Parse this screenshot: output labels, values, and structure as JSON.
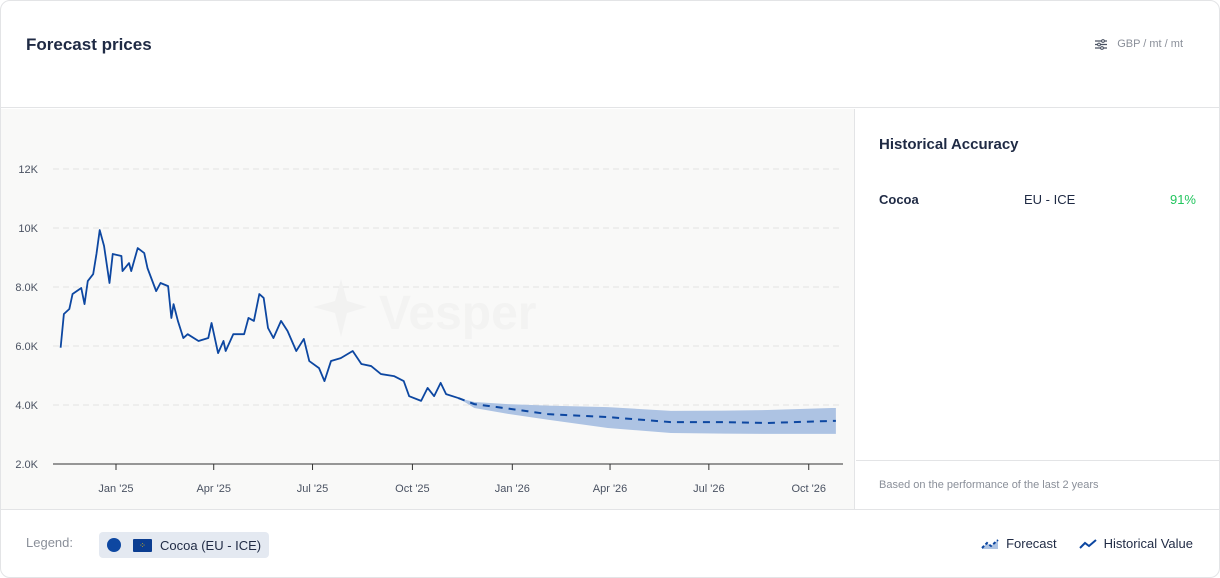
{
  "header": {
    "title": "Forecast prices",
    "units": "GBP / mt / mt",
    "units_icon": "sliders-icon"
  },
  "side": {
    "title": "Historical Accuracy",
    "rows": [
      {
        "name": "Cocoa",
        "market": "EU - ICE",
        "accuracy": "91%"
      }
    ],
    "note": "Based on the performance of the last 2 years"
  },
  "footer": {
    "legend_label": "Legend:",
    "chip": "Cocoa (EU - ICE)",
    "forecast": "Forecast",
    "historical": "Historical Value"
  },
  "watermark": "Vesper",
  "colors": {
    "line": "#0d47a1",
    "band": "#adc3e3",
    "accent_good": "#22c55e"
  },
  "chart_data": {
    "type": "line",
    "title": "Forecast prices",
    "x_unit": "days since 2025-01-01",
    "ylabel": "GBP / mt",
    "ylim": [
      2000,
      13000
    ],
    "yticks": [
      {
        "v": 2000,
        "label": "2.0K"
      },
      {
        "v": 4000,
        "label": "4.0K"
      },
      {
        "v": 6000,
        "label": "6.0K"
      },
      {
        "v": 8000,
        "label": "8.0K"
      },
      {
        "v": 10000,
        "label": "10K"
      },
      {
        "v": 12000,
        "label": "12K"
      }
    ],
    "xticks": [
      {
        "t": 0,
        "label": "Jan '25"
      },
      {
        "t": 90,
        "label": "Apr '25"
      },
      {
        "t": 181,
        "label": "Jul '25"
      },
      {
        "t": 273,
        "label": "Oct '25"
      },
      {
        "t": 365,
        "label": "Jan '26"
      },
      {
        "t": 455,
        "label": "Apr '26"
      },
      {
        "t": 546,
        "label": "Jul '26"
      },
      {
        "t": 638,
        "label": "Oct '26"
      }
    ],
    "xlim": [
      -58,
      667
    ],
    "historical": [
      [
        -51,
        5943
      ],
      [
        -48,
        7085
      ],
      [
        -43,
        7254
      ],
      [
        -40,
        7763
      ],
      [
        -32,
        7966
      ],
      [
        -29,
        7420
      ],
      [
        -26,
        8200
      ],
      [
        -21,
        8440
      ],
      [
        -18,
        9120
      ],
      [
        -15,
        9930
      ],
      [
        -11,
        9390
      ],
      [
        -6,
        8136
      ],
      [
        -3,
        9120
      ],
      [
        5,
        9050
      ],
      [
        6,
        8540
      ],
      [
        12,
        8813
      ],
      [
        14,
        8540
      ],
      [
        20,
        9320
      ],
      [
        26,
        9150
      ],
      [
        29,
        8640
      ],
      [
        37,
        7860
      ],
      [
        41,
        8136
      ],
      [
        48,
        8030
      ],
      [
        51,
        6950
      ],
      [
        53,
        7420
      ],
      [
        57,
        6850
      ],
      [
        62,
        6270
      ],
      [
        66,
        6400
      ],
      [
        76,
        6170
      ],
      [
        85,
        6270
      ],
      [
        88,
        6780
      ],
      [
        94,
        5760
      ],
      [
        99,
        6170
      ],
      [
        101,
        5830
      ],
      [
        108,
        6400
      ],
      [
        118,
        6400
      ],
      [
        122,
        6950
      ],
      [
        127,
        6850
      ],
      [
        132,
        7760
      ],
      [
        136,
        7630
      ],
      [
        140,
        6610
      ],
      [
        145,
        6270
      ],
      [
        152,
        6850
      ],
      [
        158,
        6510
      ],
      [
        166,
        5830
      ],
      [
        173,
        6240
      ],
      [
        178,
        5490
      ],
      [
        187,
        5250
      ],
      [
        192,
        4810
      ],
      [
        198,
        5490
      ],
      [
        207,
        5590
      ],
      [
        218,
        5830
      ],
      [
        226,
        5390
      ],
      [
        235,
        5320
      ],
      [
        244,
        5050
      ],
      [
        256,
        4980
      ],
      [
        265,
        4810
      ],
      [
        270,
        4300
      ],
      [
        281,
        4140
      ],
      [
        287,
        4580
      ],
      [
        293,
        4300
      ],
      [
        299,
        4750
      ],
      [
        304,
        4370
      ],
      [
        315,
        4240
      ]
    ],
    "forecast": {
      "t": [
        315,
        330,
        361,
        398,
        453,
        511,
        560,
        600,
        659,
        663
      ],
      "median": [
        4240,
        4030,
        3880,
        3690,
        3590,
        3420,
        3420,
        3390,
        3460,
        3460
      ],
      "lower": [
        4240,
        3900,
        3700,
        3500,
        3220,
        3050,
        3030,
        3020,
        3020,
        3020
      ],
      "upper": [
        4240,
        4100,
        4030,
        3980,
        3930,
        3800,
        3810,
        3830,
        3900,
        3900
      ]
    }
  }
}
